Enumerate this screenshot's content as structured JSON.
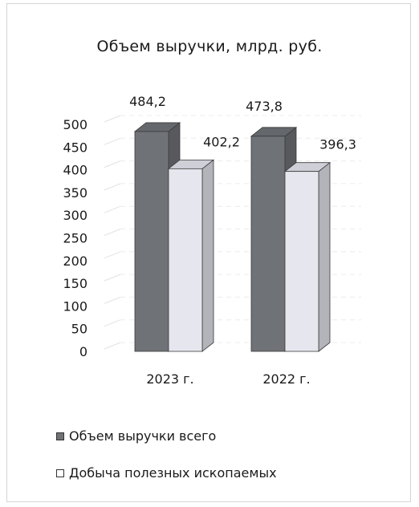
{
  "chart_data": {
    "type": "bar",
    "title": "Объем выручки, млрд. руб.",
    "categories": [
      "2023 г.",
      "2022 г."
    ],
    "series": [
      {
        "name": "Объем выручки всего",
        "values": [
          484.2,
          473.8
        ],
        "labels": [
          "484,2",
          "473,8"
        ],
        "color": "#6f7277"
      },
      {
        "name": "Добыча полезных ископаемых",
        "values": [
          402.2,
          396.3
        ],
        "labels": [
          "402,2",
          "396,3"
        ],
        "color": "#e6e6ef"
      }
    ],
    "yticks": [
      "0",
      "50",
      "100",
      "150",
      "200",
      "250",
      "300",
      "350",
      "400",
      "450",
      "500"
    ],
    "ylim": [
      0,
      500
    ],
    "xlabel": "",
    "ylabel": "",
    "grid": true,
    "style": "3d",
    "legend_position": "bottom-left"
  }
}
